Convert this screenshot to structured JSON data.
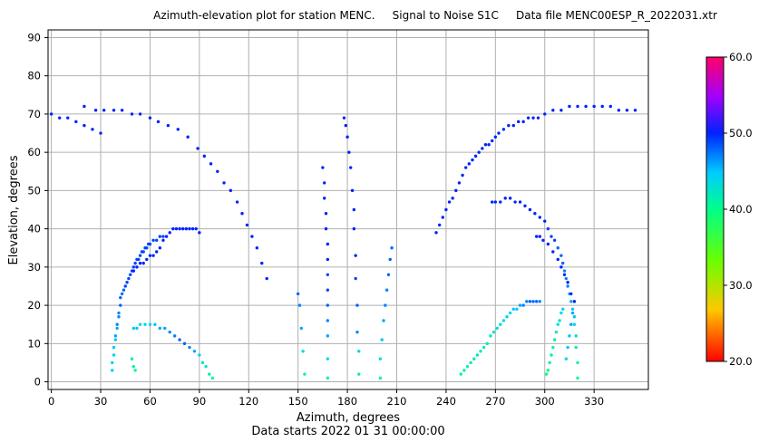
{
  "chart_data": {
    "type": "scatter",
    "title": "Azimuth-elevation plot for station MENC.     Signal to Noise S1C     Data file MENC00ESP_R_2022031.xtr",
    "xlabel": "Azimuth, degrees",
    "subtitle": "Data starts 2022 01 31 00:00:00",
    "ylabel": "Elevation, degrees",
    "xlim": [
      -2,
      363
    ],
    "ylim": [
      -2,
      92
    ],
    "xticks": [
      "0",
      "30",
      "60",
      "90",
      "120",
      "150",
      "180",
      "210",
      "240",
      "270",
      "300",
      "330"
    ],
    "yticks": [
      "0",
      "10",
      "20",
      "30",
      "40",
      "50",
      "60",
      "70",
      "80",
      "90"
    ],
    "grid": true,
    "colorbar": {
      "min": 20.0,
      "max": 60.0,
      "ticks": [
        "20.0",
        "30.0",
        "40.0",
        "50.0",
        "60.0"
      ],
      "colormap": "gist_rainbow"
    },
    "series": [
      {
        "azimuth": [
          0,
          5,
          10,
          15,
          20,
          25,
          30
        ],
        "elevation": [
          70,
          69,
          69,
          68,
          67,
          66,
          65
        ],
        "snr": [
          50,
          50,
          50,
          50,
          50,
          50,
          50
        ]
      },
      {
        "azimuth": [
          20,
          27,
          32,
          38,
          43,
          49,
          54,
          60,
          65,
          71,
          77,
          83,
          89,
          93,
          97,
          101,
          105,
          109,
          113,
          116,
          119,
          122,
          125,
          128,
          131
        ],
        "elevation": [
          72,
          71,
          71,
          71,
          71,
          70,
          70,
          69,
          68,
          67,
          66,
          64,
          61,
          59,
          57,
          55,
          52,
          50,
          47,
          44,
          41,
          38,
          35,
          31,
          27
        ],
        "snr": [
          50,
          50,
          50,
          50,
          50,
          50,
          50,
          50,
          50,
          50,
          50,
          50,
          50,
          50,
          50,
          50,
          50,
          50,
          50,
          50,
          50,
          50,
          50,
          50,
          50
        ]
      },
      {
        "azimuth": [
          37,
          37,
          38,
          38,
          39,
          39,
          40,
          40,
          41,
          41,
          42,
          42,
          43,
          44,
          45,
          46,
          47,
          48,
          49,
          50,
          51,
          52,
          53,
          54,
          55,
          56,
          57,
          58,
          59,
          60,
          62,
          64,
          66,
          68
        ],
        "elevation": [
          3,
          5,
          7,
          9,
          11,
          12,
          14,
          15,
          17,
          18,
          20,
          22,
          23,
          24,
          25,
          26,
          27,
          28,
          29,
          30,
          31,
          32,
          32,
          33,
          34,
          34,
          35,
          35,
          36,
          36,
          37,
          37,
          38,
          38
        ],
        "snr": [
          44,
          44,
          44,
          45,
          45,
          46,
          46,
          47,
          47,
          47,
          48,
          48,
          48,
          48,
          49,
          49,
          49,
          49,
          49,
          49,
          49,
          49,
          49,
          49,
          49,
          49,
          49,
          49,
          49,
          49,
          49,
          49,
          49,
          49
        ]
      },
      {
        "azimuth": [
          50,
          52,
          54,
          56,
          58,
          60,
          62,
          64,
          66,
          68,
          70,
          72,
          74,
          76,
          78,
          80,
          82,
          84,
          86,
          88,
          90
        ],
        "elevation": [
          29,
          30,
          31,
          31,
          32,
          33,
          33,
          34,
          35,
          37,
          38,
          39,
          40,
          40,
          40,
          40,
          40,
          40,
          40,
          40,
          39
        ],
        "snr": [
          50,
          50,
          50,
          50,
          50,
          50,
          50,
          50,
          50,
          50,
          50,
          50,
          50,
          50,
          50,
          50,
          50,
          50,
          50,
          50,
          50
        ]
      },
      {
        "azimuth": [
          50,
          52,
          54,
          57,
          60,
          63,
          66,
          69,
          72,
          75,
          78,
          81,
          84,
          87,
          90,
          92,
          94,
          96,
          98
        ],
        "elevation": [
          14,
          14,
          15,
          15,
          15,
          15,
          14,
          14,
          13,
          12,
          11,
          10,
          9,
          8,
          7,
          5,
          4,
          2,
          1
        ],
        "snr": [
          45,
          45,
          44,
          44,
          44,
          45,
          46,
          46,
          47,
          47,
          48,
          48,
          47,
          46,
          44,
          43,
          42,
          41,
          40
        ]
      },
      {
        "azimuth": [
          49,
          50,
          51
        ],
        "elevation": [
          6,
          4,
          3
        ],
        "snr": [
          42,
          41,
          40
        ]
      },
      {
        "azimuth": [
          150,
          151,
          152,
          153,
          154
        ],
        "elevation": [
          23,
          20,
          14,
          8,
          2
        ],
        "snr": [
          48,
          47,
          46,
          44,
          40
        ]
      },
      {
        "azimuth": [
          165,
          166,
          166,
          167,
          167,
          168,
          168,
          168,
          168,
          168,
          168,
          168,
          168,
          168
        ],
        "elevation": [
          56,
          52,
          48,
          44,
          40,
          36,
          32,
          28,
          24,
          20,
          16,
          12,
          6,
          1
        ],
        "snr": [
          50,
          50,
          50,
          50,
          50,
          50,
          50,
          49,
          49,
          48,
          47,
          46,
          44,
          41
        ]
      },
      {
        "azimuth": [
          178,
          179,
          180,
          181,
          182,
          183,
          184,
          184,
          185,
          185,
          186,
          186,
          187,
          187
        ],
        "elevation": [
          69,
          67,
          64,
          60,
          56,
          50,
          45,
          40,
          33,
          27,
          20,
          13,
          8,
          2
        ],
        "snr": [
          50,
          50,
          50,
          50,
          50,
          50,
          50,
          50,
          50,
          49,
          48,
          47,
          44,
          41
        ]
      },
      {
        "azimuth": [
          207,
          206,
          205,
          204,
          203,
          202,
          201,
          200,
          200
        ],
        "elevation": [
          35,
          32,
          28,
          24,
          20,
          16,
          11,
          6,
          1
        ],
        "snr": [
          48,
          48,
          48,
          47,
          47,
          46,
          45,
          43,
          41
        ]
      },
      {
        "azimuth": [
          234,
          236,
          238,
          240,
          242,
          244,
          246,
          248,
          250,
          252,
          254,
          256,
          258,
          260,
          262,
          264,
          266,
          268,
          270,
          272,
          275,
          278,
          281,
          284,
          287,
          290,
          293,
          296,
          300,
          305,
          310,
          315,
          320,
          325,
          330,
          335,
          340,
          345,
          350,
          355
        ],
        "elevation": [
          39,
          41,
          43,
          45,
          47,
          48,
          50,
          52,
          54,
          56,
          57,
          58,
          59,
          60,
          61,
          62,
          62,
          63,
          64,
          65,
          66,
          67,
          67,
          68,
          68,
          69,
          69,
          69,
          70,
          71,
          71,
          72,
          72,
          72,
          72,
          72,
          72,
          71,
          71,
          71
        ],
        "snr": [
          50,
          50,
          50,
          50,
          50,
          50,
          50,
          50,
          50,
          50,
          50,
          50,
          50,
          50,
          50,
          50,
          50,
          50,
          50,
          50,
          50,
          50,
          50,
          50,
          50,
          50,
          50,
          50,
          50,
          50,
          50,
          50,
          50,
          50,
          50,
          50,
          50,
          50,
          50,
          50
        ]
      },
      {
        "azimuth": [
          268,
          270,
          273,
          276,
          279,
          282,
          285,
          288,
          291,
          294,
          297,
          300,
          302,
          304,
          306,
          308,
          310,
          311,
          312,
          313,
          314,
          315,
          316,
          317,
          318,
          318,
          319,
          319,
          320,
          320
        ],
        "elevation": [
          47,
          47,
          47,
          48,
          48,
          47,
          47,
          46,
          45,
          44,
          43,
          42,
          40,
          38,
          37,
          35,
          33,
          31,
          29,
          27,
          25,
          23,
          21,
          19,
          17,
          15,
          12,
          9,
          5,
          1
        ],
        "snr": [
          50,
          50,
          50,
          50,
          50,
          50,
          50,
          50,
          50,
          50,
          50,
          50,
          49,
          49,
          49,
          48,
          48,
          48,
          47,
          47,
          47,
          46,
          46,
          45,
          45,
          44,
          43,
          42,
          41,
          40
        ]
      },
      {
        "azimuth": [
          295,
          297,
          299,
          302,
          305,
          308,
          310,
          312,
          314,
          316,
          318
        ],
        "elevation": [
          38,
          38,
          37,
          36,
          34,
          32,
          30,
          28,
          26,
          23,
          21
        ],
        "snr": [
          50,
          50,
          50,
          50,
          50,
          50,
          50,
          50,
          50,
          50,
          50
        ]
      },
      {
        "azimuth": [
          249,
          251,
          253,
          255,
          257,
          259,
          261,
          263,
          265,
          267,
          269,
          271,
          273,
          275,
          277,
          279,
          281,
          283,
          285,
          287,
          289,
          291,
          293,
          295,
          297
        ],
        "elevation": [
          2,
          3,
          4,
          5,
          6,
          7,
          8,
          9,
          10,
          12,
          13,
          14,
          15,
          16,
          17,
          18,
          19,
          19,
          20,
          20,
          21,
          21,
          21,
          21,
          21
        ],
        "snr": [
          41,
          41,
          41,
          42,
          42,
          42,
          42,
          42,
          42,
          42,
          43,
          43,
          43,
          43,
          44,
          44,
          45,
          45,
          46,
          47,
          47,
          48,
          48,
          48,
          47
        ]
      },
      {
        "azimuth": [
          301,
          302,
          303,
          304,
          305,
          306,
          307,
          308,
          309,
          310,
          311
        ],
        "elevation": [
          2,
          3,
          5,
          7,
          9,
          11,
          13,
          15,
          16,
          18,
          19
        ],
        "snr": [
          40,
          40,
          41,
          41,
          41,
          42,
          42,
          43,
          43,
          44,
          44
        ]
      },
      {
        "azimuth": [
          313,
          314,
          315,
          316,
          317
        ],
        "elevation": [
          6,
          9,
          12,
          15,
          18
        ],
        "snr": [
          44,
          45,
          45,
          46,
          46
        ]
      }
    ]
  }
}
